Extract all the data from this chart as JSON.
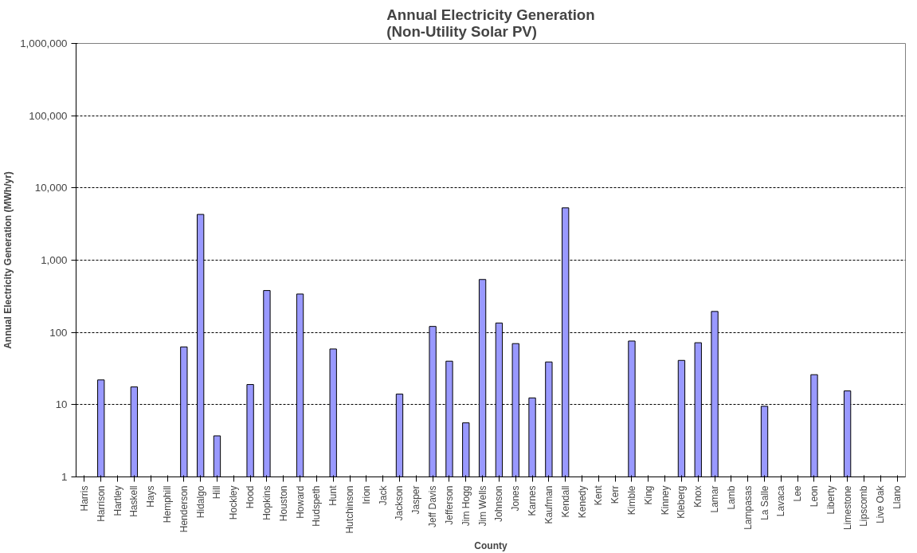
{
  "chart_data": {
    "type": "bar",
    "title": "Annual Electricity Generation\n(Non-Utility Solar PV)",
    "xlabel": "County",
    "ylabel": "Annual Electricity Generation (MWh/yr)",
    "categories": [
      "Harris",
      "Harrison",
      "Hartley",
      "Haskell",
      "Hays",
      "Hemphill",
      "Henderson",
      "Hidalgo",
      "Hill",
      "Hockley",
      "Hood",
      "Hopkins",
      "Houston",
      "Howard",
      "Hudspeth",
      "Hunt",
      "Hutchinson",
      "Irion",
      "Jack",
      "Jackson",
      "Jasper",
      "Jeff Davis",
      "Jefferson",
      "Jim Hogg",
      "Jim Wells",
      "Johnson",
      "Jones",
      "Karnes",
      "Kaufman",
      "Kendall",
      "Kenedy",
      "Kent",
      "Kerr",
      "Kimble",
      "King",
      "Kinney",
      "Kleberg",
      "Knox",
      "Lamar",
      "Lamb",
      "Lampasas",
      "La Salle",
      "Lavaca",
      "Lee",
      "Leon",
      "Liberty",
      "Limestone",
      "Lipscomb",
      "Live Oak",
      "Llano"
    ],
    "values": [
      null,
      22,
      null,
      17.6,
      null,
      null,
      63,
      4300,
      3.7,
      null,
      19,
      380,
      null,
      340,
      null,
      59,
      null,
      null,
      null,
      14,
      null,
      121,
      40,
      5.6,
      540,
      135,
      70,
      12.4,
      39,
      5300,
      null,
      null,
      null,
      76,
      null,
      null,
      41,
      72,
      195,
      null,
      null,
      9.5,
      null,
      null,
      26,
      null,
      15.5,
      null,
      null,
      null
    ],
    "color": "#9999ff",
    "log": true,
    "ylim": [
      1,
      1000000
    ],
    "yticks": [
      1,
      10,
      100,
      {
        "value": 1000,
        "label": "1,000"
      },
      {
        "value": 10000,
        "label": "10,000"
      },
      {
        "value": 100000,
        "label": "100,000"
      },
      {
        "value": 1000000,
        "label": "1,000,000"
      }
    ],
    "grid": "y"
  }
}
